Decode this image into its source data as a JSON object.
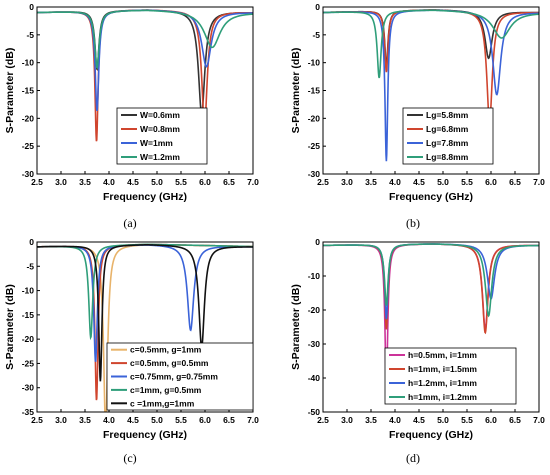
{
  "chart_data": [
    {
      "type": "line",
      "panel_label": "(a)",
      "xlabel": "Frequency (GHz)",
      "ylabel": "S-Parameter (dB)",
      "xlim": [
        2.5,
        7.0
      ],
      "ylim": [
        -30,
        0
      ],
      "xticks": [
        "2.5",
        "3.0",
        "3.5",
        "4.0",
        "4.5",
        "5.0",
        "5.5",
        "6.0",
        "6.5",
        "7.0"
      ],
      "yticks": [
        "0",
        "-5",
        "-10",
        "-15",
        "-20",
        "-25",
        "-30"
      ],
      "legend_position": "lower-right",
      "series": [
        {
          "name": "W=0.6mm",
          "color": "#333333",
          "resonances": [
            {
              "f": 3.75,
              "db": -10.5,
              "w": 0.05
            },
            {
              "f": 5.93,
              "db": -18.5,
              "w": 0.08
            }
          ]
        },
        {
          "name": "W=0.8mm",
          "color": "#d0452e",
          "resonances": [
            {
              "f": 3.74,
              "db": -23.5,
              "w": 0.04
            },
            {
              "f": 5.99,
              "db": -20.5,
              "w": 0.07
            }
          ]
        },
        {
          "name": "W=1mm",
          "color": "#3b63d8",
          "resonances": [
            {
              "f": 3.75,
              "db": -18.0,
              "w": 0.045
            },
            {
              "f": 6.03,
              "db": -10.0,
              "w": 0.12
            }
          ]
        },
        {
          "name": "W=1.2mm",
          "color": "#2f9e7a",
          "resonances": [
            {
              "f": 3.75,
              "db": -10.2,
              "w": 0.055
            },
            {
              "f": 6.15,
              "db": -6.5,
              "w": 0.2
            }
          ]
        }
      ]
    },
    {
      "type": "line",
      "panel_label": "(b)",
      "xlabel": "Frequency (GHz)",
      "ylabel": "S-Parameter (dB)",
      "xlim": [
        2.5,
        7.0
      ],
      "ylim": [
        -30,
        0
      ],
      "xticks": [
        "2.5",
        "3.0",
        "3.5",
        "4.0",
        "4.5",
        "5.0",
        "5.5",
        "6.0",
        "6.5",
        "7.0"
      ],
      "yticks": [
        "0",
        "-5",
        "-10",
        "-15",
        "-20",
        "-25",
        "-30"
      ],
      "legend_position": "lower-right",
      "series": [
        {
          "name": "Lg=5.8mm",
          "color": "#333333",
          "resonances": [
            {
              "f": 3.82,
              "db": -10.0,
              "w": 0.04
            },
            {
              "f": 5.95,
              "db": -8.5,
              "w": 0.09
            }
          ]
        },
        {
          "name": "Lg=6.8mm",
          "color": "#d0452e",
          "resonances": [
            {
              "f": 3.82,
              "db": -11.0,
              "w": 0.04
            },
            {
              "f": 5.97,
              "db": -20.0,
              "w": 0.07
            }
          ]
        },
        {
          "name": "Lg=7.8mm",
          "color": "#3b63d8",
          "resonances": [
            {
              "f": 3.82,
              "db": -27.0,
              "w": 0.035
            },
            {
              "f": 6.12,
              "db": -15.0,
              "w": 0.1
            }
          ]
        },
        {
          "name": "Lg=8.8mm",
          "color": "#2f9e7a",
          "resonances": [
            {
              "f": 3.67,
              "db": -12.0,
              "w": 0.05
            },
            {
              "f": 6.22,
              "db": -4.8,
              "w": 0.22
            }
          ]
        }
      ]
    },
    {
      "type": "line",
      "panel_label": "(c)",
      "xlabel": "Frequency (GHz)",
      "ylabel": "S-Parameter (dB)",
      "xlim": [
        2.5,
        7.0
      ],
      "ylim": [
        -35,
        0
      ],
      "xticks": [
        "2.5",
        "3.0",
        "3.5",
        "4.0",
        "4.5",
        "5.0",
        "5.5",
        "6.0",
        "6.5",
        "7.0"
      ],
      "yticks": [
        "0",
        "-5",
        "-10",
        "-15",
        "-20",
        "-25",
        "-30",
        "-35"
      ],
      "legend_position": "lower-right",
      "series": [
        {
          "name": "c=0.5mm, g=1mm",
          "color": "#e8b36a",
          "resonances": [
            {
              "f": 3.93,
              "db": -38.0,
              "w": 0.05
            }
          ]
        },
        {
          "name": "c=0.5mm, g=0.5mm",
          "color": "#d0452e",
          "resonances": [
            {
              "f": 3.74,
              "db": -32.0,
              "w": 0.04
            }
          ]
        },
        {
          "name": "c=0.75mm, g=0.75mm",
          "color": "#3b63d8",
          "resonances": [
            {
              "f": 3.72,
              "db": -24.0,
              "w": 0.045
            },
            {
              "f": 5.7,
              "db": -17.5,
              "w": 0.08
            }
          ]
        },
        {
          "name": "c=1mm, g=0.5mm",
          "color": "#2f9e7a",
          "resonances": [
            {
              "f": 3.62,
              "db": -19.0,
              "w": 0.05
            }
          ]
        },
        {
          "name": "c =1mm,g=1mm",
          "color": "#111111",
          "resonances": [
            {
              "f": 3.82,
              "db": -28.0,
              "w": 0.04
            },
            {
              "f": 5.93,
              "db": -21.0,
              "w": 0.07
            }
          ]
        }
      ]
    },
    {
      "type": "line",
      "panel_label": "(d)",
      "xlabel": "Frequency (GHz)",
      "ylabel": "S-Parameter (dB)",
      "xlim": [
        2.5,
        7.0
      ],
      "ylim": [
        -50,
        0
      ],
      "xticks": [
        "2.5",
        "3.0",
        "3.5",
        "4.0",
        "4.5",
        "5.0",
        "5.5",
        "6.0",
        "6.5",
        "7.0"
      ],
      "yticks": [
        "0",
        "-10",
        "-20",
        "-30",
        "-40",
        "-50"
      ],
      "legend_position": "lower-right",
      "series": [
        {
          "name": "h=0.5mm, i=1mm",
          "color": "#cc3399",
          "resonances": [
            {
              "f": 3.82,
              "db": -42.0,
              "w": 0.035
            },
            {
              "f": 5.88,
              "db": -25.0,
              "w": 0.07
            }
          ]
        },
        {
          "name": "h=1mm, i=1.5mm",
          "color": "#d0452e",
          "resonances": [
            {
              "f": 3.82,
              "db": -25.0,
              "w": 0.04
            },
            {
              "f": 5.88,
              "db": -26.0,
              "w": 0.07
            }
          ]
        },
        {
          "name": "h=1.2mm, i=1mm",
          "color": "#3b63d8",
          "resonances": [
            {
              "f": 3.82,
              "db": -22.0,
              "w": 0.04
            },
            {
              "f": 6.0,
              "db": -16.0,
              "w": 0.09
            }
          ]
        },
        {
          "name": "h=1mm, i=1.2mm",
          "color": "#2f9e7a",
          "resonances": [
            {
              "f": 3.82,
              "db": -18.0,
              "w": 0.045
            },
            {
              "f": 5.95,
              "db": -21.0,
              "w": 0.08
            }
          ]
        }
      ]
    }
  ]
}
